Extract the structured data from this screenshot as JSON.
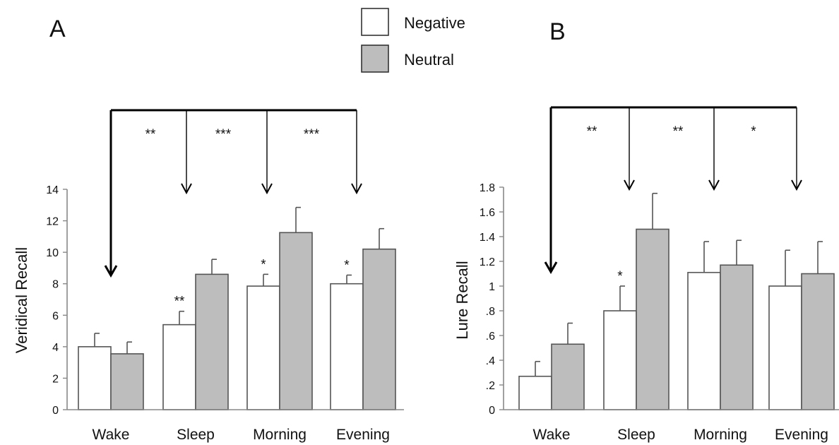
{
  "legend": {
    "items": [
      {
        "label": "Negative",
        "color": "#ffffff"
      },
      {
        "label": "Neutral",
        "color": "#bdbdbd"
      }
    ]
  },
  "colors": {
    "negative_fill": "#ffffff",
    "neutral_fill": "#bdbdbd",
    "bar_stroke": "#555555",
    "axis": "#888888",
    "text": "#111111"
  },
  "chart_data": [
    {
      "panel": "A",
      "type": "bar",
      "ylabel": "Veridical Recall",
      "xlabel": "",
      "ylim": [
        0,
        14
      ],
      "y_ticks": [
        0,
        2,
        4,
        6,
        8,
        10,
        12,
        14
      ],
      "y_tick_labels": [
        "0",
        "2",
        "4",
        "6",
        "8",
        "10",
        "12",
        "14"
      ],
      "categories": [
        "Wake",
        "Sleep",
        "Morning",
        "Evening"
      ],
      "series": [
        {
          "name": "Negative",
          "values": [
            4.0,
            5.4,
            7.85,
            8.0
          ],
          "errors": [
            0.85,
            0.85,
            0.75,
            0.55
          ],
          "markers": [
            "",
            "**",
            "*",
            "*"
          ]
        },
        {
          "name": "Neutral",
          "values": [
            3.55,
            8.6,
            11.25,
            10.2
          ],
          "errors": [
            0.75,
            0.95,
            1.6,
            1.3
          ],
          "markers": [
            "",
            "",
            "",
            ""
          ]
        }
      ],
      "comparisons": {
        "from": "Wake",
        "targets": [
          "Sleep",
          "Morning",
          "Evening"
        ],
        "labels": [
          "**",
          "***",
          "***"
        ]
      },
      "grid": false
    },
    {
      "panel": "B",
      "type": "bar",
      "ylabel": "Lure Recall",
      "xlabel": "",
      "ylim": [
        0,
        1.8
      ],
      "y_ticks": [
        0,
        0.2,
        0.4,
        0.6,
        0.8,
        1.0,
        1.2,
        1.4,
        1.6,
        1.8
      ],
      "y_tick_labels": [
        "0",
        ".2",
        ".4",
        ".6",
        ".8",
        "1",
        "1.2",
        "1.4",
        "1.6",
        "1.8"
      ],
      "categories": [
        "Wake",
        "Sleep",
        "Morning",
        "Evening"
      ],
      "series": [
        {
          "name": "Negative",
          "values": [
            0.27,
            0.8,
            1.11,
            1.0
          ],
          "errors": [
            0.12,
            0.2,
            0.25,
            0.29
          ],
          "markers": [
            "",
            "*",
            "",
            ""
          ]
        },
        {
          "name": "Neutral",
          "values": [
            0.53,
            1.46,
            1.17,
            1.1
          ],
          "errors": [
            0.17,
            0.29,
            0.2,
            0.26
          ],
          "markers": [
            "",
            "",
            "",
            ""
          ]
        }
      ],
      "comparisons": {
        "from": "Wake",
        "targets": [
          "Sleep",
          "Morning",
          "Evening"
        ],
        "labels": [
          "**",
          "**",
          "*"
        ]
      },
      "grid": false
    }
  ]
}
